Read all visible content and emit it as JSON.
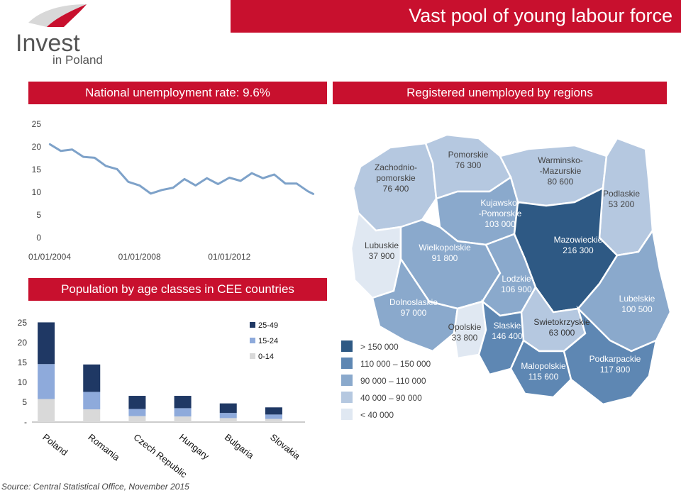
{
  "header": {
    "title": "Vast pool of young labour force"
  },
  "logo": {
    "text": "Invest",
    "subtext": "in Poland"
  },
  "sections": {
    "unemployment_title": "National unemployment rate: 9.6%",
    "regions_title": "Registered unemployed by regions",
    "population_title": "Population by age classes in CEE countries"
  },
  "source": "Source: Central Statistical Office, November 2015",
  "colors": {
    "brand_red": "#c8102e",
    "series_line": "#7ea2c9",
    "dark_navy": "#1f3864",
    "mid_blue": "#8eaadb",
    "light_grey": "#d9d9d9"
  },
  "chart_data": [
    {
      "type": "line",
      "x": [
        "2004-01",
        "2004-07",
        "2005-01",
        "2005-07",
        "2006-01",
        "2006-07",
        "2007-01",
        "2007-07",
        "2008-01",
        "2008-07",
        "2009-01",
        "2009-07",
        "2010-01",
        "2010-07",
        "2011-01",
        "2011-07",
        "2012-01",
        "2012-07",
        "2013-01",
        "2013-07",
        "2014-01",
        "2014-07",
        "2015-01",
        "2015-07",
        "2015-10"
      ],
      "values": [
        20.6,
        19.1,
        19.4,
        17.8,
        17.6,
        15.8,
        15.1,
        12.3,
        11.5,
        9.7,
        10.5,
        11.0,
        12.9,
        11.5,
        13.1,
        11.8,
        13.2,
        12.5,
        14.2,
        13.1,
        13.9,
        11.9,
        11.9,
        10.2,
        9.6
      ],
      "yticks": [
        "0",
        "5",
        "10",
        "15",
        "20",
        "25"
      ],
      "xticks": [
        "01/01/2004",
        "01/01/2008",
        "01/01/2012"
      ],
      "ylim": [
        0,
        25
      ],
      "grid": false
    },
    {
      "type": "bar",
      "stacked": true,
      "categories": [
        "Poland",
        "Romania",
        "Czech Republic",
        "Hungary",
        "Bulgaria",
        "Slovakia"
      ],
      "series": [
        {
          "name": "0-14",
          "color": "#d9d9d9",
          "values": [
            5.8,
            3.2,
            1.5,
            1.4,
            1.0,
            0.8
          ]
        },
        {
          "name": "15-24",
          "color": "#8eaadb",
          "values": [
            8.8,
            4.4,
            1.8,
            2.1,
            1.3,
            1.1
          ]
        },
        {
          "name": "25-49",
          "color": "#1f3864",
          "values": [
            10.5,
            6.9,
            3.3,
            3.1,
            2.4,
            1.8
          ]
        }
      ],
      "yticks": [
        "-",
        "5",
        "10",
        "15",
        "20",
        "25"
      ],
      "ylim": [
        0,
        25
      ],
      "legend": "top-right"
    },
    {
      "type": "map",
      "legend": [
        {
          "label": "> 150 000",
          "color": "#2e5984"
        },
        {
          "label": "110 000 – 150 000",
          "color": "#5e87b3"
        },
        {
          "label": "90 000 – 110 000",
          "color": "#8aa9cc"
        },
        {
          "label": "40 000 – 90 000",
          "color": "#b5c8e0"
        },
        {
          "label": "< 40 000",
          "color": "#e0e8f2"
        }
      ],
      "regions": [
        {
          "name": "Zachodnio-\npomorskie",
          "value": "76 400",
          "color": "#b5c8e0",
          "text_color": "#444"
        },
        {
          "name": "Pomorskie",
          "value": "76 300",
          "color": "#b5c8e0",
          "text_color": "#444"
        },
        {
          "name": "Warminsko-\n-Mazurskie",
          "value": "80 600",
          "color": "#b5c8e0",
          "text_color": "#444"
        },
        {
          "name": "Podlaskie",
          "value": "53 200",
          "color": "#b5c8e0",
          "text_color": "#444"
        },
        {
          "name": "Kujawsko-\n-Pomorskie",
          "value": "103 000",
          "color": "#8aa9cc",
          "text_color": "#ffffff"
        },
        {
          "name": "Lubuskie",
          "value": "37 900",
          "color": "#e0e8f2",
          "text_color": "#444"
        },
        {
          "name": "Wielkopolskie",
          "value": "91 800",
          "color": "#8aa9cc",
          "text_color": "#ffffff"
        },
        {
          "name": "Mazowieckie",
          "value": "216 300",
          "color": "#2e5984",
          "text_color": "#ffffff"
        },
        {
          "name": "Lodzkie",
          "value": "106 900",
          "color": "#8aa9cc",
          "text_color": "#ffffff"
        },
        {
          "name": "Lubelskie",
          "value": "100 500",
          "color": "#8aa9cc",
          "text_color": "#ffffff"
        },
        {
          "name": "Dolnoslaskie",
          "value": "97 000",
          "color": "#8aa9cc",
          "text_color": "#ffffff"
        },
        {
          "name": "Opolskie",
          "value": "33 800",
          "color": "#e0e8f2",
          "text_color": "#444"
        },
        {
          "name": "Slaskie",
          "value": "146 400",
          "color": "#5e87b3",
          "text_color": "#ffffff"
        },
        {
          "name": "Swietokrzyskie",
          "value": "63 000",
          "color": "#b5c8e0",
          "text_color": "#333"
        },
        {
          "name": "Malopolskie",
          "value": "115 600",
          "color": "#5e87b3",
          "text_color": "#ffffff"
        },
        {
          "name": "Podkarpackie",
          "value": "117 800",
          "color": "#5e87b3",
          "text_color": "#ffffff"
        }
      ]
    }
  ]
}
